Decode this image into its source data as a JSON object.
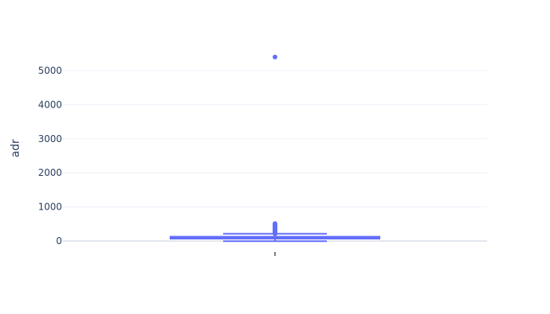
{
  "chart_data": {
    "type": "box",
    "ylabel": "adr",
    "xlabel": "",
    "y_ticks": [
      0,
      1000,
      2000,
      3000,
      4000,
      5000
    ],
    "y_tick_labels": [
      "0",
      "1000",
      "2000",
      "3000",
      "4000",
      "5000"
    ],
    "ylim": [
      -300,
      5700
    ],
    "grid": true,
    "series": [
      {
        "category": "",
        "min": -6,
        "q1": 69,
        "median": 95,
        "q3": 126,
        "upper_fence": 212,
        "outliers": [
          213,
          225,
          240,
          255,
          270,
          285,
          300,
          315,
          330,
          345,
          360,
          375,
          390,
          405,
          420,
          435,
          450,
          470,
          490,
          510,
          5400
        ]
      }
    ]
  },
  "colors": {
    "box": "#636efa",
    "grid": "#ebf0f8",
    "zeroline": "#e2e6ee",
    "text": "#2a3f5f"
  }
}
